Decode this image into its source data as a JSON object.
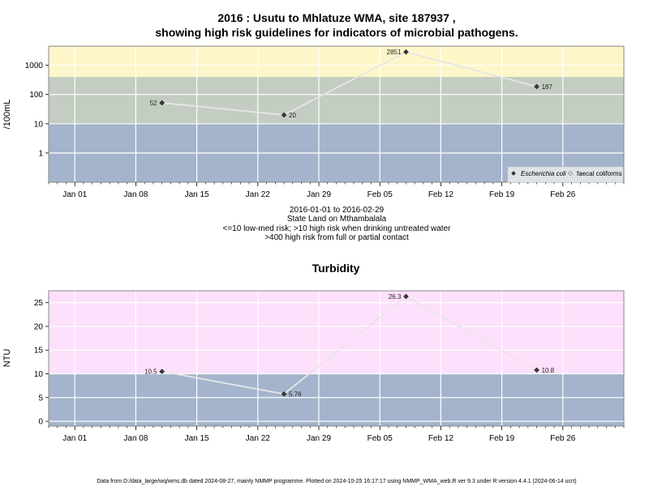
{
  "chart_data": [
    {
      "type": "line",
      "title_lines": [
        "2016 : Usutu to Mhlatuze WMA, site 187937 ,",
        "showing high risk guidelines for indicators of microbial pathogens."
      ],
      "ylabel": "/100mL",
      "yscale": "log",
      "ylim": [
        0.1,
        4500
      ],
      "yticks": [
        1,
        10,
        100,
        1000
      ],
      "ytick_labels": [
        "1",
        "10",
        "100",
        "1000"
      ],
      "bands": [
        {
          "from": 0.1,
          "to": 10,
          "color": "#a3b4cc"
        },
        {
          "from": 10,
          "to": 400,
          "color": "#c4cdc2"
        },
        {
          "from": 400,
          "to": 4500,
          "color": "#fdf6c8"
        }
      ],
      "series": [
        {
          "name": "Escherichia coli",
          "x": [
            "2016-01-11",
            "2016-01-25",
            "2016-02-08",
            "2016-02-23"
          ],
          "values": [
            52,
            20,
            2851,
            187
          ],
          "labels": [
            "52",
            "20",
            "2851",
            "187"
          ]
        }
      ],
      "legend": {
        "position": "bottom-right",
        "entries": [
          "Escherichia coli",
          "faecal coliforms"
        ]
      },
      "notes": [
        "2016-01-01 to 2016-02-29",
        "State Land on Mthambalala",
        "<=10 low-med risk; >10 high risk when drinking untreated water",
        ">400 high risk from full or partial contact"
      ]
    },
    {
      "type": "line",
      "title": "Turbidity",
      "ylabel": "NTU",
      "ylim": [
        -1,
        27.5
      ],
      "yticks": [
        0,
        5,
        10,
        15,
        20,
        25
      ],
      "ytick_labels": [
        "0",
        "5",
        "10",
        "15",
        "20",
        "25"
      ],
      "bands": [
        {
          "from": -1,
          "to": 10,
          "color": "#a3b4cc"
        },
        {
          "from": 10,
          "to": 27.5,
          "color": "#fde0fb"
        }
      ],
      "series": [
        {
          "x": [
            "2016-01-11",
            "2016-01-25",
            "2016-02-08",
            "2016-02-23"
          ],
          "values": [
            10.5,
            5.76,
            26.3,
            10.8
          ],
          "labels": [
            "10.5",
            "5.76",
            "26.3",
            "10.8"
          ]
        }
      ]
    }
  ],
  "x_axis": {
    "xlim": [
      "2015-12-29",
      "2016-03-04"
    ],
    "major_ticks": [
      "2016-01-01",
      "2016-01-08",
      "2016-01-15",
      "2016-01-22",
      "2016-01-29",
      "2016-02-05",
      "2016-02-12",
      "2016-02-19",
      "2016-02-26"
    ],
    "major_labels": [
      "Jan 01",
      "Jan 08",
      "Jan 15",
      "Jan 22",
      "Jan 29",
      "Feb 05",
      "Feb 12",
      "Feb 19",
      "Feb 26"
    ]
  },
  "colors": {
    "line": "#e6e6e6",
    "marker": "#3a3a3a",
    "grid": "#ffffff",
    "frame": "#888888"
  },
  "footer": "Data from D:/data_large/wq/wms.db dated 2024-08-27, mainly NMMP programme. Plotted on 2024-10-25 16:17:17 using NMMP_WMA_web.R ver 9.3 under R version 4.4.1 (2024-06-14 ucrt)"
}
